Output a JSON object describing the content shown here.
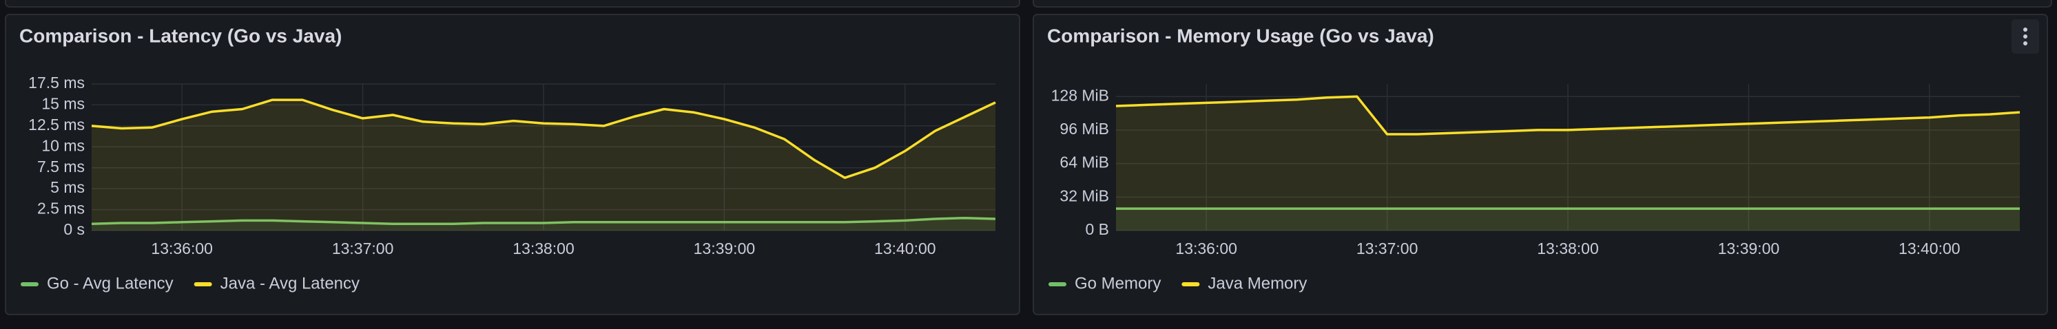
{
  "chart_data": [
    {
      "type": "line",
      "title": "Comparison - Latency (Go vs Java)",
      "x": [
        "13:35:30",
        "13:35:40",
        "13:35:50",
        "13:36:00",
        "13:36:10",
        "13:36:20",
        "13:36:30",
        "13:36:40",
        "13:36:50",
        "13:37:00",
        "13:37:10",
        "13:37:20",
        "13:37:30",
        "13:37:40",
        "13:37:50",
        "13:38:00",
        "13:38:10",
        "13:38:20",
        "13:38:30",
        "13:38:40",
        "13:38:50",
        "13:39:00",
        "13:39:10",
        "13:39:20",
        "13:39:30",
        "13:39:40",
        "13:39:50",
        "13:40:00",
        "13:40:10",
        "13:40:20",
        "13:40:30"
      ],
      "series": [
        {
          "name": "Go - Avg Latency",
          "color": "#73bf69",
          "values": [
            0.8,
            0.9,
            0.9,
            1.0,
            1.1,
            1.2,
            1.2,
            1.1,
            1.0,
            0.9,
            0.8,
            0.8,
            0.8,
            0.9,
            0.9,
            0.9,
            1.0,
            1.0,
            1.0,
            1.0,
            1.0,
            1.0,
            1.0,
            1.0,
            1.0,
            1.0,
            1.1,
            1.2,
            1.4,
            1.5,
            1.4
          ]
        },
        {
          "name": "Java - Avg Latency",
          "color": "#fade2a",
          "values": [
            12.5,
            12.2,
            12.3,
            13.3,
            14.2,
            14.5,
            15.6,
            15.6,
            14.4,
            13.4,
            13.8,
            13.0,
            12.8,
            12.7,
            13.1,
            12.8,
            12.7,
            12.5,
            13.6,
            14.5,
            14.1,
            13.3,
            12.3,
            10.9,
            8.4,
            6.3,
            7.5,
            9.5,
            11.9,
            13.6,
            15.3
          ]
        }
      ],
      "xlim": [
        "13:35:30",
        "13:40:30"
      ],
      "xticks": [
        "13:36:00",
        "13:37:00",
        "13:38:00",
        "13:39:00",
        "13:40:00"
      ],
      "ylim": [
        0,
        17.5
      ],
      "yticks": [
        {
          "value": 0,
          "label": "0 s"
        },
        {
          "value": 2.5,
          "label": "2.5 ms"
        },
        {
          "value": 5,
          "label": "5 ms"
        },
        {
          "value": 7.5,
          "label": "7.5 ms"
        },
        {
          "value": 10,
          "label": "10 ms"
        },
        {
          "value": 12.5,
          "label": "12.5 ms"
        },
        {
          "value": 15,
          "label": "15 ms"
        },
        {
          "value": 17.5,
          "label": "17.5 ms"
        }
      ],
      "grid": true,
      "legend": "bottom"
    },
    {
      "type": "line",
      "title": "Comparison - Memory Usage (Go vs Java)",
      "x": [
        "13:35:30",
        "13:35:40",
        "13:35:50",
        "13:36:00",
        "13:36:10",
        "13:36:20",
        "13:36:30",
        "13:36:40",
        "13:36:50",
        "13:37:00",
        "13:37:10",
        "13:37:20",
        "13:37:30",
        "13:37:40",
        "13:37:50",
        "13:38:00",
        "13:38:10",
        "13:38:20",
        "13:38:30",
        "13:38:40",
        "13:38:50",
        "13:39:00",
        "13:39:10",
        "13:39:20",
        "13:39:30",
        "13:39:40",
        "13:39:50",
        "13:40:00",
        "13:40:10",
        "13:40:20",
        "13:40:30"
      ],
      "series": [
        {
          "name": "Go Memory",
          "color": "#73bf69",
          "values": [
            21,
            21,
            21,
            21,
            21,
            21,
            21,
            21,
            21,
            21,
            21,
            21,
            21,
            21,
            21,
            21,
            21,
            21,
            21,
            21,
            21,
            21,
            21,
            21,
            21,
            21,
            21,
            21,
            21,
            21,
            21
          ]
        },
        {
          "name": "Java Memory",
          "color": "#fade2a",
          "values": [
            119,
            120,
            121,
            122,
            123,
            124,
            125,
            127,
            128,
            92,
            92,
            93,
            94,
            95,
            96,
            96,
            97,
            98,
            99,
            100,
            101,
            102,
            103,
            104,
            105,
            106,
            107,
            108,
            110,
            111,
            113
          ]
        }
      ],
      "xlim": [
        "13:35:30",
        "13:40:30"
      ],
      "xticks": [
        "13:36:00",
        "13:37:00",
        "13:38:00",
        "13:39:00",
        "13:40:00"
      ],
      "ylim": [
        0,
        140
      ],
      "yticks": [
        {
          "value": 0,
          "label": "0 B"
        },
        {
          "value": 32,
          "label": "32 MiB"
        },
        {
          "value": 64,
          "label": "64 MiB"
        },
        {
          "value": 96,
          "label": "96 MiB"
        },
        {
          "value": 128,
          "label": "128 MiB"
        }
      ],
      "grid": true,
      "legend": "bottom"
    }
  ]
}
